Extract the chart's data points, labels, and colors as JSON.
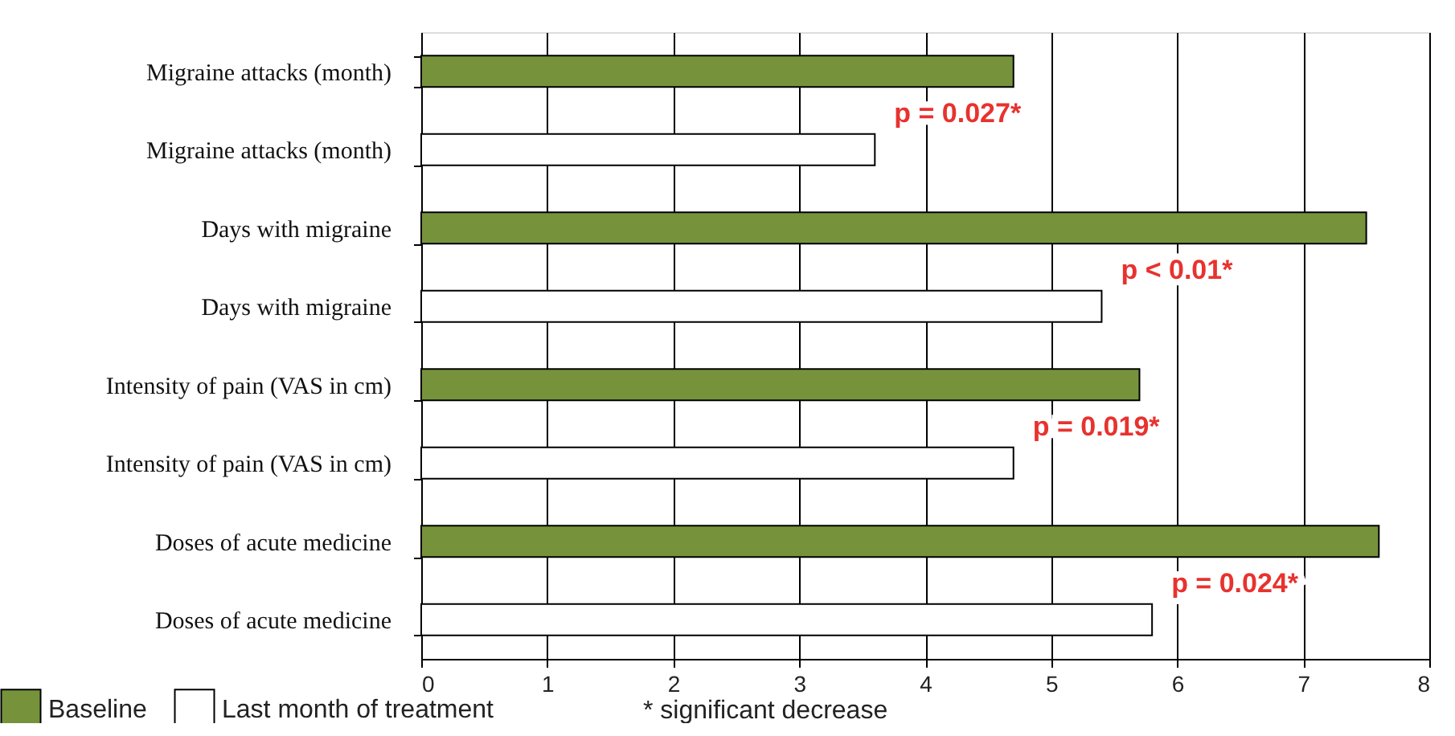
{
  "chart_data": {
    "type": "bar",
    "orientation": "horizontal",
    "categories": [
      "Migraine attacks (month)",
      "Migraine attacks (month)",
      "Days with migraine",
      "Days with migraine",
      "Intensity of pain (VAS in cm)",
      "Intensity of pain (VAS in cm)",
      "Doses of acute medicine",
      "Doses of acute medicine"
    ],
    "series": [
      {
        "name": "Baseline",
        "color": "#76933c",
        "values": [
          4.7,
          null,
          7.5,
          null,
          5.7,
          null,
          7.6,
          null
        ]
      },
      {
        "name": "Last month of treatment",
        "color": "#ffffff",
        "values": [
          null,
          3.6,
          null,
          5.4,
          null,
          4.7,
          null,
          5.8
        ]
      }
    ],
    "xlim": [
      0,
      8
    ],
    "xticks": [
      {
        "value": 0,
        "label": "0"
      },
      {
        "value": 1,
        "label": "1"
      },
      {
        "value": 2,
        "label": "2"
      },
      {
        "value": 3,
        "label": "3"
      },
      {
        "value": 4,
        "label": "4"
      },
      {
        "value": 5,
        "label": "5"
      },
      {
        "value": 6,
        "label": "6"
      },
      {
        "value": 7,
        "label": "7"
      },
      {
        "value": 8,
        "label": "8"
      }
    ],
    "grid": "x",
    "legend": "bottom left",
    "annotations": [
      "p = 0.027*",
      "p < 0.01*",
      "p = 0.019*",
      "p = 0.024*",
      "* significant decrease"
    ]
  }
}
